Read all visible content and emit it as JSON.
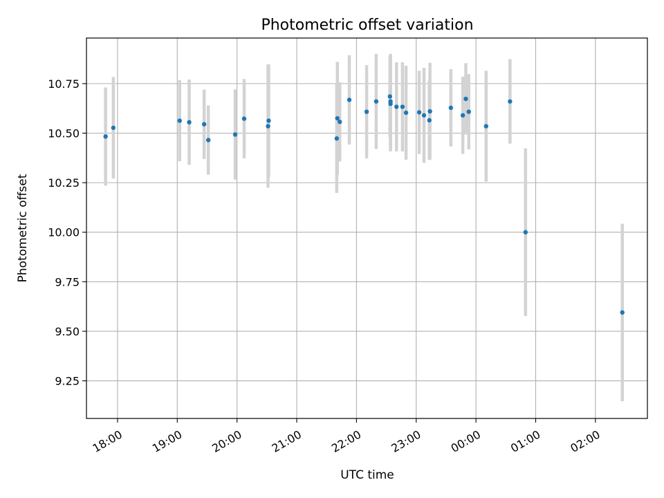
{
  "chart_data": {
    "type": "scatter",
    "title": "Photometric offset variation",
    "xlabel": "UTC time",
    "ylabel": "Photometric offset",
    "x_axis": {
      "unit": "hours (UTC), values past midnight continue beyond 24:00",
      "range": [
        17.48,
        26.87
      ],
      "ticks": [
        {
          "value": 18,
          "label": "18:00"
        },
        {
          "value": 19,
          "label": "19:00"
        },
        {
          "value": 20,
          "label": "20:00"
        },
        {
          "value": 21,
          "label": "21:00"
        },
        {
          "value": 22,
          "label": "22:00"
        },
        {
          "value": 23,
          "label": "23:00"
        },
        {
          "value": 24,
          "label": "00:00"
        },
        {
          "value": 25,
          "label": "01:00"
        },
        {
          "value": 26,
          "label": "02:00"
        }
      ]
    },
    "y_axis": {
      "range": [
        9.06,
        10.98
      ],
      "ticks": [
        {
          "value": 9.25,
          "label": "9.25"
        },
        {
          "value": 9.5,
          "label": "9.50"
        },
        {
          "value": 9.75,
          "label": "9.75"
        },
        {
          "value": 10.0,
          "label": "10.00"
        },
        {
          "value": 10.25,
          "label": "10.25"
        },
        {
          "value": 10.5,
          "label": "10.50"
        },
        {
          "value": 10.75,
          "label": "10.75"
        }
      ]
    },
    "grid": true,
    "colors": {
      "point": "#1f77b4",
      "errorbar": "#d3d3d3",
      "grid": "#b0b0b0"
    },
    "points": [
      {
        "x": 17.8,
        "y": 10.483,
        "err": 0.248
      },
      {
        "x": 17.93,
        "y": 10.527,
        "err": 0.256
      },
      {
        "x": 19.04,
        "y": 10.563,
        "err": 0.205
      },
      {
        "x": 19.2,
        "y": 10.555,
        "err": 0.215
      },
      {
        "x": 19.45,
        "y": 10.545,
        "err": 0.175
      },
      {
        "x": 19.52,
        "y": 10.465,
        "err": 0.175
      },
      {
        "x": 19.97,
        "y": 10.493,
        "err": 0.228
      },
      {
        "x": 20.12,
        "y": 10.573,
        "err": 0.2
      },
      {
        "x": 20.52,
        "y": 10.535,
        "err": 0.31
      },
      {
        "x": 20.53,
        "y": 10.563,
        "err": 0.285
      },
      {
        "x": 21.67,
        "y": 10.473,
        "err": 0.275
      },
      {
        "x": 21.68,
        "y": 10.575,
        "err": 0.285
      },
      {
        "x": 21.72,
        "y": 10.557,
        "err": 0.2
      },
      {
        "x": 21.88,
        "y": 10.668,
        "err": 0.225
      },
      {
        "x": 22.17,
        "y": 10.608,
        "err": 0.235
      },
      {
        "x": 22.33,
        "y": 10.66,
        "err": 0.24
      },
      {
        "x": 22.56,
        "y": 10.685,
        "err": 0.205
      },
      {
        "x": 22.57,
        "y": 10.66,
        "err": 0.24
      },
      {
        "x": 22.57,
        "y": 10.648,
        "err": 0.24
      },
      {
        "x": 22.67,
        "y": 10.633,
        "err": 0.225
      },
      {
        "x": 22.77,
        "y": 10.633,
        "err": 0.225
      },
      {
        "x": 22.83,
        "y": 10.603,
        "err": 0.237
      },
      {
        "x": 23.05,
        "y": 10.605,
        "err": 0.21
      },
      {
        "x": 23.13,
        "y": 10.59,
        "err": 0.24
      },
      {
        "x": 23.22,
        "y": 10.565,
        "err": 0.2
      },
      {
        "x": 23.23,
        "y": 10.61,
        "err": 0.245
      },
      {
        "x": 23.58,
        "y": 10.628,
        "err": 0.195
      },
      {
        "x": 23.78,
        "y": 10.59,
        "err": 0.195
      },
      {
        "x": 23.83,
        "y": 10.673,
        "err": 0.18
      },
      {
        "x": 23.88,
        "y": 10.608,
        "err": 0.19
      },
      {
        "x": 24.17,
        "y": 10.535,
        "err": 0.28
      },
      {
        "x": 24.57,
        "y": 10.66,
        "err": 0.213
      },
      {
        "x": 24.83,
        "y": 10.0,
        "err": 0.423
      },
      {
        "x": 26.45,
        "y": 9.595,
        "err": 0.448
      }
    ]
  }
}
